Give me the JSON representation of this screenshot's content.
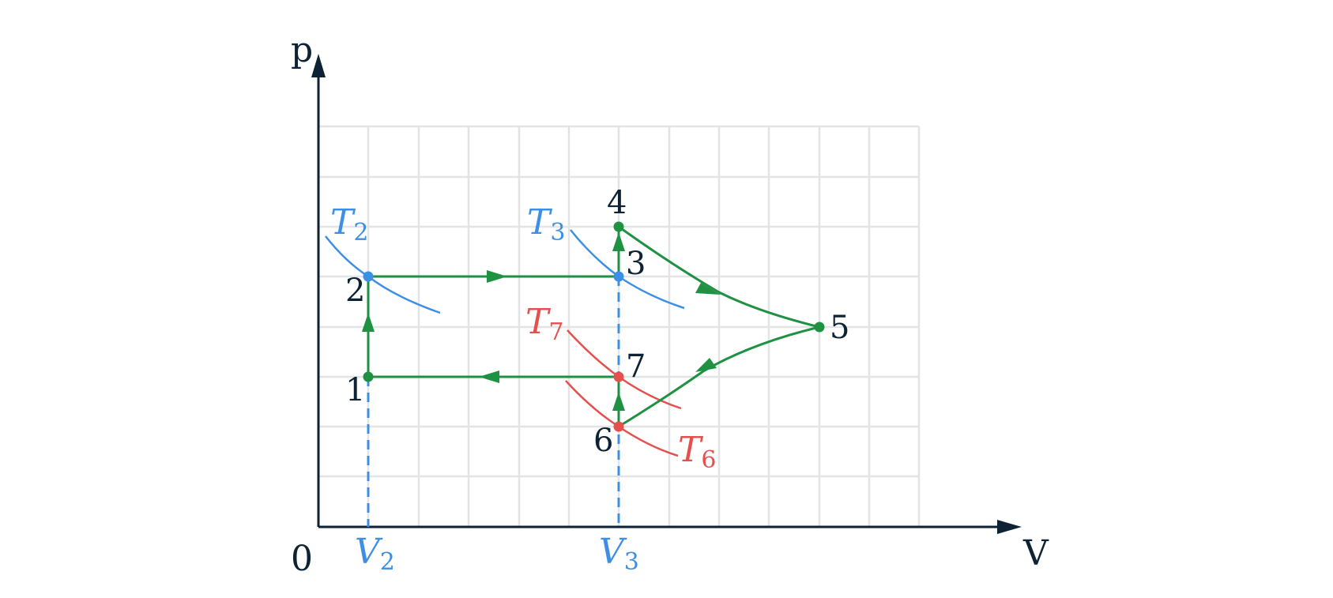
{
  "axes": {
    "y_label": "p",
    "x_label": "V",
    "origin_label": "0",
    "v2_label": {
      "main": "V",
      "sub": "2"
    },
    "v3_label": {
      "main": "V",
      "sub": "3"
    }
  },
  "isotherms": {
    "t2": {
      "main": "T",
      "sub": "2"
    },
    "t3": {
      "main": "T",
      "sub": "3"
    },
    "t6": {
      "main": "T",
      "sub": "6"
    },
    "t7": {
      "main": "T",
      "sub": "7"
    }
  },
  "points": {
    "p1": "1",
    "p2": "2",
    "p3": "3",
    "p4": "4",
    "p5": "5",
    "p6": "6",
    "p7": "7"
  },
  "colors": {
    "axis": "#0d2234",
    "grid": "#e2e4e6",
    "process": "#1f9142",
    "isotherm_hot": "#3d8fe6",
    "isotherm_cold": "#e5504f"
  }
}
